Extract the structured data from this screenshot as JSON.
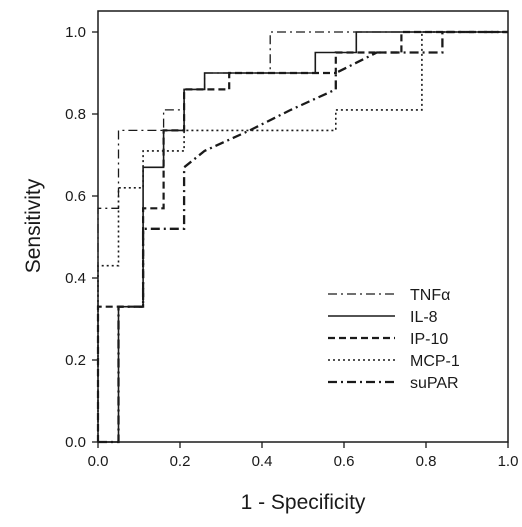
{
  "chart_data": {
    "type": "line",
    "title": "",
    "xlabel": "1 - Specificity",
    "ylabel": "Sensitivity",
    "xlim": [
      0,
      1
    ],
    "ylim": [
      0,
      1
    ],
    "x_ticks": [
      "0.0",
      "0.2",
      "0.4",
      "0.6",
      "0.8",
      "1.0"
    ],
    "y_ticks": [
      "0.0",
      "0.2",
      "0.4",
      "0.6",
      "0.8",
      "1.0"
    ],
    "grid": false,
    "legend_position": "bottom-right",
    "series": [
      {
        "name": "TNFα",
        "dash": "dash-dot",
        "points": [
          [
            0,
            0
          ],
          [
            0,
            0.57
          ],
          [
            0.05,
            0.57
          ],
          [
            0.05,
            0.76
          ],
          [
            0.16,
            0.76
          ],
          [
            0.16,
            0.81
          ],
          [
            0.21,
            0.81
          ],
          [
            0.21,
            0.86
          ],
          [
            0.26,
            0.86
          ],
          [
            0.26,
            0.9
          ],
          [
            0.42,
            0.9
          ],
          [
            0.42,
            1.0
          ],
          [
            1.0,
            1.0
          ]
        ]
      },
      {
        "name": "IL-8",
        "dash": "solid",
        "points": [
          [
            0,
            0
          ],
          [
            0.05,
            0
          ],
          [
            0.05,
            0.33
          ],
          [
            0.11,
            0.33
          ],
          [
            0.11,
            0.67
          ],
          [
            0.16,
            0.67
          ],
          [
            0.16,
            0.76
          ],
          [
            0.21,
            0.76
          ],
          [
            0.21,
            0.86
          ],
          [
            0.26,
            0.86
          ],
          [
            0.26,
            0.9
          ],
          [
            0.53,
            0.9
          ],
          [
            0.53,
            0.95
          ],
          [
            0.63,
            0.95
          ],
          [
            0.63,
            1.0
          ],
          [
            1.0,
            1.0
          ]
        ]
      },
      {
        "name": "IP-10",
        "dash": "dashed",
        "points": [
          [
            0,
            0
          ],
          [
            0,
            0.33
          ],
          [
            0.11,
            0.33
          ],
          [
            0.11,
            0.57
          ],
          [
            0.16,
            0.57
          ],
          [
            0.16,
            0.76
          ],
          [
            0.21,
            0.76
          ],
          [
            0.21,
            0.86
          ],
          [
            0.32,
            0.86
          ],
          [
            0.32,
            0.9
          ],
          [
            0.58,
            0.9
          ],
          [
            0.58,
            0.95
          ],
          [
            0.74,
            0.95
          ],
          [
            0.74,
            1.0
          ],
          [
            1.0,
            1.0
          ]
        ]
      },
      {
        "name": "MCP-1",
        "dash": "dotted",
        "points": [
          [
            0,
            0
          ],
          [
            0,
            0.43
          ],
          [
            0.05,
            0.43
          ],
          [
            0.05,
            0.62
          ],
          [
            0.11,
            0.62
          ],
          [
            0.11,
            0.71
          ],
          [
            0.21,
            0.71
          ],
          [
            0.21,
            0.76
          ],
          [
            0.58,
            0.76
          ],
          [
            0.58,
            0.81
          ],
          [
            0.79,
            0.81
          ],
          [
            0.79,
            1.0
          ],
          [
            1.0,
            1.0
          ]
        ]
      },
      {
        "name": "suPAR",
        "dash": "dash-dot-heavy",
        "points": [
          [
            0,
            0
          ],
          [
            0.05,
            0
          ],
          [
            0.05,
            0.33
          ],
          [
            0.11,
            0.33
          ],
          [
            0.11,
            0.52
          ],
          [
            0.21,
            0.52
          ],
          [
            0.21,
            0.67
          ],
          [
            0.26,
            0.71
          ],
          [
            0.37,
            0.76
          ],
          [
            0.47,
            0.81
          ],
          [
            0.58,
            0.86
          ],
          [
            0.58,
            0.9
          ],
          [
            0.68,
            0.95
          ],
          [
            0.84,
            0.95
          ],
          [
            0.84,
            1.0
          ],
          [
            1.0,
            1.0
          ]
        ]
      }
    ]
  }
}
